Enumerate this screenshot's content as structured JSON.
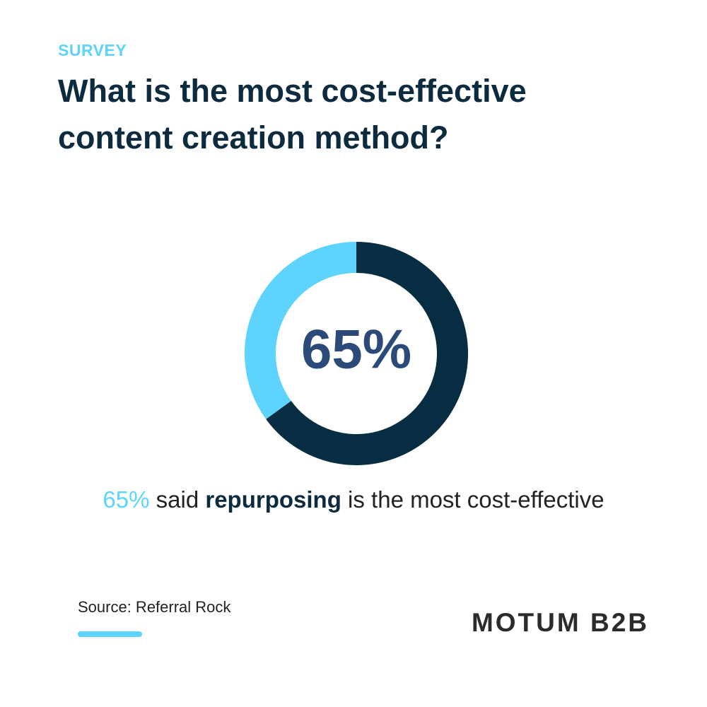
{
  "chart_data": {
    "type": "donut",
    "kicker": "SURVEY",
    "title": "What is the most cost-effective content creation method?",
    "values": [
      65,
      35
    ],
    "value_labels": [
      "65%",
      null
    ],
    "colors": [
      "#062d42",
      "#5dd3fd"
    ],
    "caption": {
      "highlight": "65%",
      "before_bold": "said",
      "bold": "repurposing",
      "after_bold": "is the most cost-effective"
    },
    "source": "Source: Referral Rock",
    "logo": "MOTUM B2B"
  }
}
